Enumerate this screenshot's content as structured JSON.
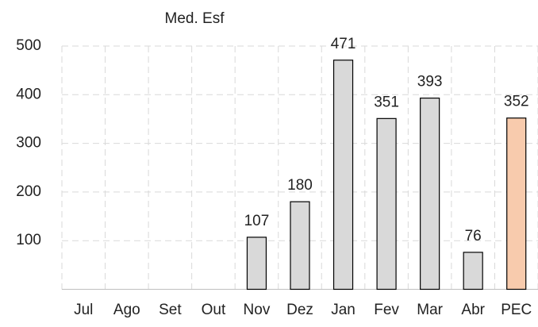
{
  "chart_data": {
    "type": "bar",
    "title": "Med. Esf",
    "categories": [
      "Jul",
      "Ago",
      "Set",
      "Out",
      "Nov",
      "Dez",
      "Jan",
      "Fev",
      "Mar",
      "Abr",
      "PEC"
    ],
    "values": [
      null,
      null,
      null,
      null,
      107,
      180,
      471,
      351,
      393,
      76,
      352
    ],
    "colors": [
      "#d9d9d9",
      "#d9d9d9",
      "#d9d9d9",
      "#d9d9d9",
      "#d9d9d9",
      "#d9d9d9",
      "#d9d9d9",
      "#d9d9d9",
      "#d9d9d9",
      "#d9d9d9",
      "#f8cbad"
    ],
    "ylim": [
      0,
      500
    ],
    "yticks": [
      100,
      200,
      300,
      400,
      500
    ],
    "grid": true
  }
}
